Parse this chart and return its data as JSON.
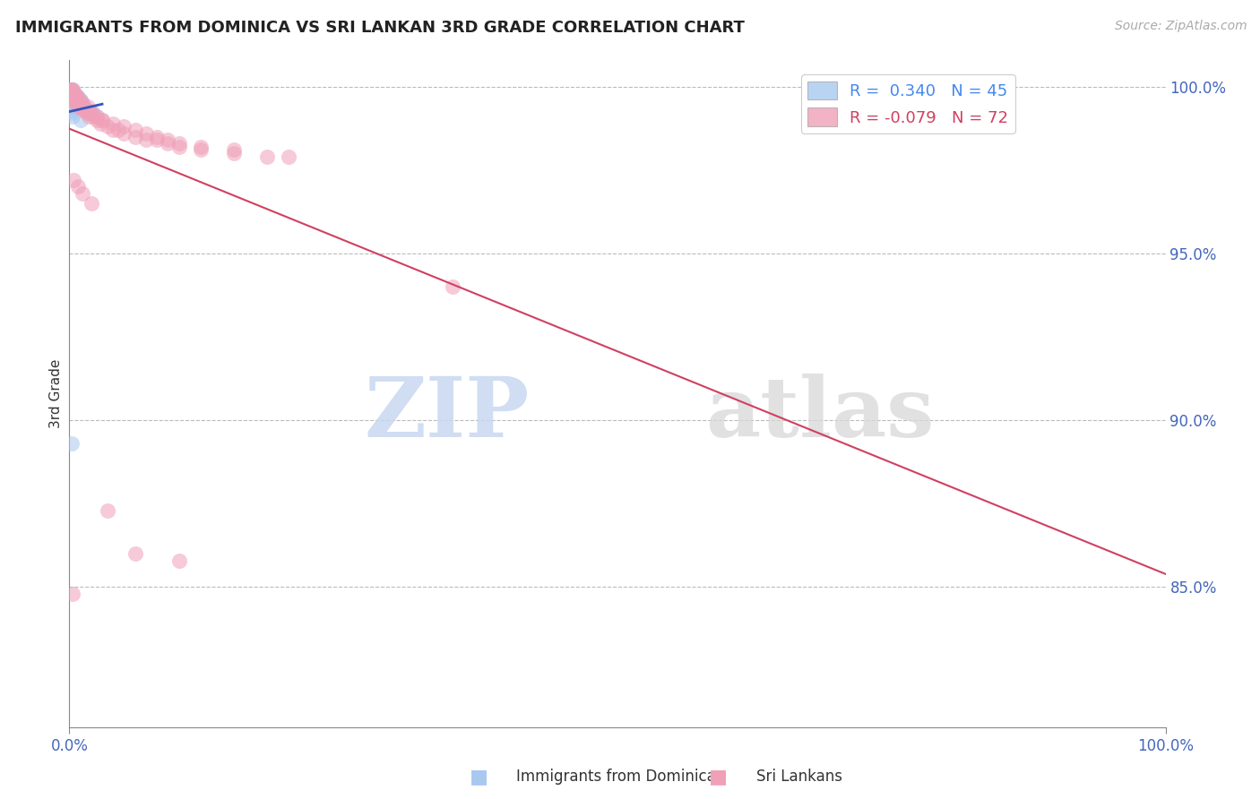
{
  "title": "IMMIGRANTS FROM DOMINICA VS SRI LANKAN 3RD GRADE CORRELATION CHART",
  "source_text": "Source: ZipAtlas.com",
  "ylabel": "3rd Grade",
  "xmin": 0.0,
  "xmax": 1.0,
  "ymin": 0.808,
  "ymax": 1.008,
  "yticks": [
    0.85,
    0.9,
    0.95,
    1.0
  ],
  "ytick_labels": [
    "85.0%",
    "90.0%",
    "95.0%",
    "100.0%"
  ],
  "blue_color": "#A8C8F0",
  "pink_color": "#F0A0B8",
  "blue_line_color": "#3355BB",
  "pink_line_color": "#D04060",
  "legend_blue_label_r": "0.340",
  "legend_blue_label_n": "45",
  "legend_pink_label_r": "-0.079",
  "legend_pink_label_n": "72",
  "watermark_zip": "ZIP",
  "watermark_atlas": "atlas",
  "blue_scatter_x": [
    0.001,
    0.001,
    0.001,
    0.001,
    0.002,
    0.002,
    0.002,
    0.002,
    0.002,
    0.003,
    0.003,
    0.003,
    0.003,
    0.004,
    0.004,
    0.004,
    0.005,
    0.005,
    0.005,
    0.006,
    0.006,
    0.007,
    0.007,
    0.008,
    0.008,
    0.009,
    0.009,
    0.01,
    0.011,
    0.012,
    0.013,
    0.014,
    0.015,
    0.016,
    0.017,
    0.018,
    0.02,
    0.022,
    0.025,
    0.001,
    0.001,
    0.002,
    0.003,
    0.01,
    0.002
  ],
  "blue_scatter_y": [
    0.999,
    0.998,
    0.997,
    0.996,
    0.999,
    0.998,
    0.997,
    0.996,
    0.995,
    0.999,
    0.998,
    0.997,
    0.996,
    0.998,
    0.997,
    0.996,
    0.998,
    0.997,
    0.995,
    0.997,
    0.996,
    0.997,
    0.996,
    0.997,
    0.995,
    0.996,
    0.994,
    0.996,
    0.995,
    0.995,
    0.994,
    0.994,
    0.993,
    0.993,
    0.993,
    0.992,
    0.992,
    0.992,
    0.991,
    0.994,
    0.993,
    0.992,
    0.991,
    0.99,
    0.893
  ],
  "pink_scatter_x": [
    0.001,
    0.002,
    0.002,
    0.003,
    0.003,
    0.003,
    0.004,
    0.004,
    0.004,
    0.005,
    0.005,
    0.005,
    0.006,
    0.006,
    0.007,
    0.007,
    0.008,
    0.008,
    0.009,
    0.01,
    0.01,
    0.011,
    0.012,
    0.013,
    0.015,
    0.016,
    0.017,
    0.018,
    0.02,
    0.022,
    0.025,
    0.028,
    0.03,
    0.035,
    0.04,
    0.045,
    0.05,
    0.06,
    0.07,
    0.08,
    0.09,
    0.1,
    0.12,
    0.15,
    0.18,
    0.003,
    0.005,
    0.007,
    0.01,
    0.015,
    0.02,
    0.025,
    0.03,
    0.04,
    0.05,
    0.06,
    0.07,
    0.08,
    0.09,
    0.1,
    0.12,
    0.15,
    0.2,
    0.004,
    0.008,
    0.012,
    0.02,
    0.035,
    0.06,
    0.1,
    0.35,
    0.003
  ],
  "pink_scatter_y": [
    0.999,
    0.999,
    0.998,
    0.999,
    0.998,
    0.997,
    0.998,
    0.997,
    0.996,
    0.998,
    0.997,
    0.996,
    0.997,
    0.996,
    0.997,
    0.995,
    0.996,
    0.994,
    0.995,
    0.996,
    0.994,
    0.995,
    0.994,
    0.993,
    0.993,
    0.992,
    0.994,
    0.991,
    0.992,
    0.991,
    0.99,
    0.989,
    0.99,
    0.988,
    0.987,
    0.987,
    0.986,
    0.985,
    0.984,
    0.984,
    0.983,
    0.982,
    0.981,
    0.98,
    0.979,
    0.997,
    0.996,
    0.995,
    0.994,
    0.993,
    0.992,
    0.991,
    0.99,
    0.989,
    0.988,
    0.987,
    0.986,
    0.985,
    0.984,
    0.983,
    0.982,
    0.981,
    0.979,
    0.972,
    0.97,
    0.968,
    0.965,
    0.873,
    0.86,
    0.858,
    0.94,
    0.848
  ],
  "footer_label1": "Immigrants from Dominica",
  "footer_label2": "Sri Lankans"
}
